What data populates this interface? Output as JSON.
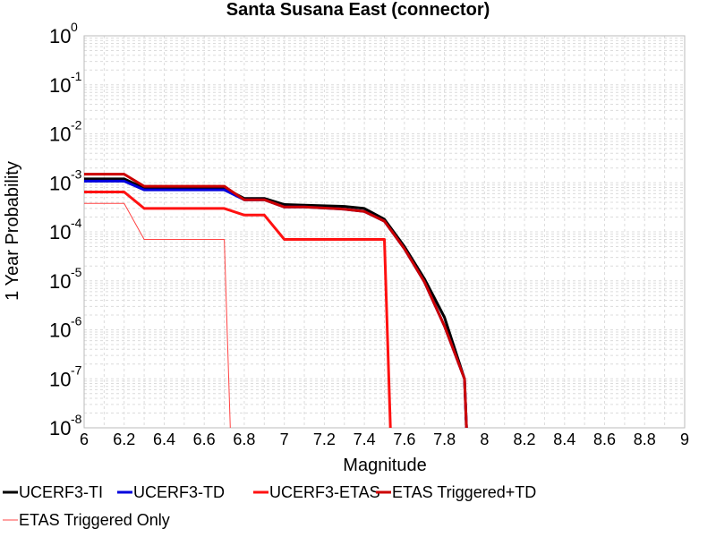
{
  "chart_data": {
    "type": "line",
    "title": "Santa Susana East (connector)",
    "xlabel": "Magnitude",
    "ylabel": "1 Year Probability",
    "xlim": [
      6,
      9
    ],
    "ylim": [
      1e-08,
      1
    ],
    "yscale": "log",
    "grid": true,
    "legend_position": "bottom",
    "xticks": [
      "6",
      "6.2",
      "6.4",
      "6.6",
      "6.8",
      "7",
      "7.2",
      "7.4",
      "7.6",
      "7.8",
      "8",
      "8.2",
      "8.4",
      "8.6",
      "8.8",
      "9"
    ],
    "yticks": [
      {
        "base": "10",
        "exp": "0",
        "value": 1
      },
      {
        "base": "10",
        "exp": "-1",
        "value": 0.1
      },
      {
        "base": "10",
        "exp": "-2",
        "value": 0.01
      },
      {
        "base": "10",
        "exp": "-3",
        "value": 0.001
      },
      {
        "base": "10",
        "exp": "-4",
        "value": 0.0001
      },
      {
        "base": "10",
        "exp": "-5",
        "value": 1e-05
      },
      {
        "base": "10",
        "exp": "-6",
        "value": 1e-06
      },
      {
        "base": "10",
        "exp": "-7",
        "value": 1e-07
      },
      {
        "base": "10",
        "exp": "-8",
        "value": 1e-08
      }
    ],
    "series": [
      {
        "name": "UCERF3-TI",
        "color": "#000000",
        "width": 3,
        "points": [
          [
            6.0,
            0.0012
          ],
          [
            6.2,
            0.0012
          ],
          [
            6.3,
            0.00078
          ],
          [
            6.4,
            0.00078
          ],
          [
            6.7,
            0.00078
          ],
          [
            6.8,
            0.00048
          ],
          [
            6.9,
            0.00048
          ],
          [
            7.0,
            0.00036
          ],
          [
            7.1,
            0.00035
          ],
          [
            7.3,
            0.00033
          ],
          [
            7.4,
            0.0003
          ],
          [
            7.5,
            0.00018
          ],
          [
            7.6,
            5e-05
          ],
          [
            7.7,
            1.1e-05
          ],
          [
            7.8,
            1.8e-06
          ],
          [
            7.9,
            1e-07
          ],
          [
            7.91,
            1e-08
          ]
        ]
      },
      {
        "name": "UCERF3-TD",
        "color": "#0000dd",
        "width": 3,
        "points": [
          [
            6.0,
            0.00108
          ],
          [
            6.2,
            0.00108
          ],
          [
            6.3,
            0.00072
          ],
          [
            6.4,
            0.00072
          ],
          [
            6.7,
            0.00072
          ],
          [
            6.8,
            0.00045
          ],
          [
            6.9,
            0.00045
          ],
          [
            7.0,
            0.00032
          ],
          [
            7.1,
            0.00032
          ],
          [
            7.3,
            0.00029
          ],
          [
            7.4,
            0.00026
          ],
          [
            7.5,
            0.000165
          ],
          [
            7.6,
            4.5e-05
          ],
          [
            7.7,
            9.5e-06
          ],
          [
            7.8,
            1.2e-06
          ],
          [
            7.9,
            1e-07
          ],
          [
            7.91,
            1e-08
          ]
        ]
      },
      {
        "name": "UCERF3-ETAS",
        "color": "#ff1111",
        "width": 3,
        "points": [
          [
            6.0,
            0.00065
          ],
          [
            6.2,
            0.00065
          ],
          [
            6.3,
            0.0003
          ],
          [
            6.4,
            0.0003
          ],
          [
            6.7,
            0.0003
          ],
          [
            6.8,
            0.00022
          ],
          [
            6.9,
            0.00022
          ],
          [
            7.0,
            7e-05
          ],
          [
            7.1,
            7e-05
          ],
          [
            7.3,
            7e-05
          ],
          [
            7.4,
            7e-05
          ],
          [
            7.5,
            7e-05
          ],
          [
            7.53,
            1e-08
          ]
        ]
      },
      {
        "name": "ETAS Triggered+TD",
        "color": "#cc0000",
        "width": 3,
        "points": [
          [
            6.0,
            0.0015
          ],
          [
            6.2,
            0.0015
          ],
          [
            6.3,
            0.00085
          ],
          [
            6.4,
            0.00085
          ],
          [
            6.7,
            0.00085
          ],
          [
            6.8,
            0.00045
          ],
          [
            6.9,
            0.00045
          ],
          [
            7.0,
            0.00032
          ],
          [
            7.1,
            0.00032
          ],
          [
            7.3,
            0.00029
          ],
          [
            7.4,
            0.00026
          ],
          [
            7.5,
            0.000165
          ],
          [
            7.6,
            4.5e-05
          ],
          [
            7.7,
            9.5e-06
          ],
          [
            7.8,
            1.2e-06
          ],
          [
            7.9,
            1e-07
          ],
          [
            7.91,
            1e-08
          ]
        ]
      },
      {
        "name": "ETAS Triggered Only",
        "color": "#ff4444",
        "width": 1,
        "points": [
          [
            6.0,
            0.00038
          ],
          [
            6.2,
            0.00038
          ],
          [
            6.3,
            7e-05
          ],
          [
            6.4,
            7e-05
          ],
          [
            6.7,
            7e-05
          ],
          [
            6.73,
            1e-08
          ]
        ]
      }
    ]
  }
}
